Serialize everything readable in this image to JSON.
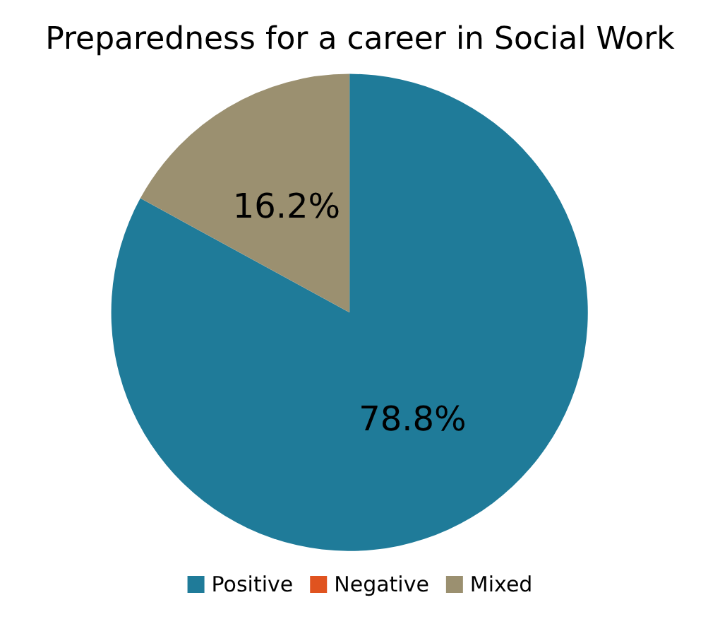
{
  "chart_data": {
    "type": "pie",
    "title": "Preparedness for a career in Social Work",
    "categories": [
      "Positive",
      "Negative",
      "Mixed"
    ],
    "values": [
      78.8,
      0,
      16.2
    ],
    "value_labels": [
      "78.8%",
      null,
      "16.2%"
    ],
    "colors": [
      "#1f7b99",
      "#e0531f",
      "#9b9070"
    ],
    "legend": "bottom"
  }
}
